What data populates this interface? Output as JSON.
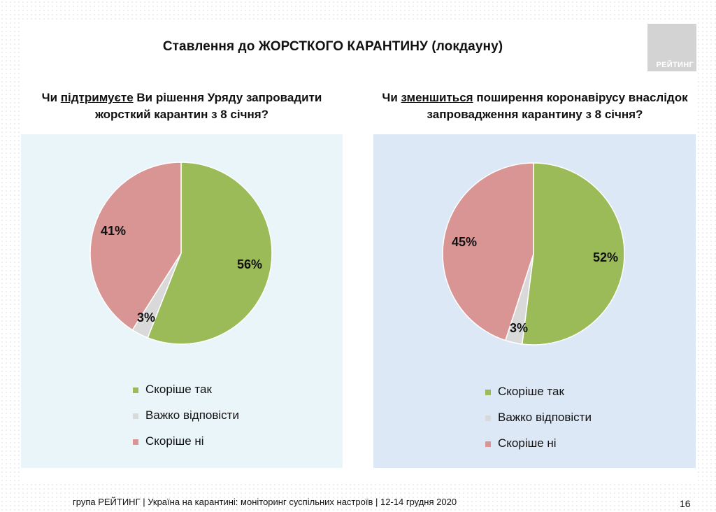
{
  "title": "Ставлення до ЖОРСТКОГО КАРАНТИНУ (локдауну)",
  "logo_text": "РЕЙТИНГ",
  "colors": {
    "yes": "#9bbb59",
    "hard": "#d9d9d9",
    "no": "#d99594"
  },
  "questions": [
    {
      "pre": "Чи ",
      "underlined": "підтримуєте",
      "post": " Ви рішення Уряду запровадити жорсткий карантин з 8 січня?"
    },
    {
      "pre": "Чи ",
      "underlined": "зменшиться",
      "post": " поширення коронавірусу внаслідок запровадження карантину з 8 січня?"
    }
  ],
  "chart_data": [
    {
      "type": "pie",
      "slices": [
        {
          "label": "Скоріше так",
          "value": 56,
          "display": "56%"
        },
        {
          "label": "Важко відповісти",
          "value": 3,
          "display": "3%"
        },
        {
          "label": "Скоріше ні",
          "value": 41,
          "display": "41%"
        }
      ]
    },
    {
      "type": "pie",
      "slices": [
        {
          "label": "Скоріше так",
          "value": 52,
          "display": "52%"
        },
        {
          "label": "Важко відповісти",
          "value": 3,
          "display": "3%"
        },
        {
          "label": "Скоріше ні",
          "value": 45,
          "display": "45%"
        }
      ]
    }
  ],
  "legend": [
    "Скоріше так",
    "Важко відповісти",
    "Скоріше ні"
  ],
  "footer": "група РЕЙТИНГ | Україна на карантині: моніторинг суспільних настроїв | 12-14 грудня 2020",
  "page_number": "16"
}
